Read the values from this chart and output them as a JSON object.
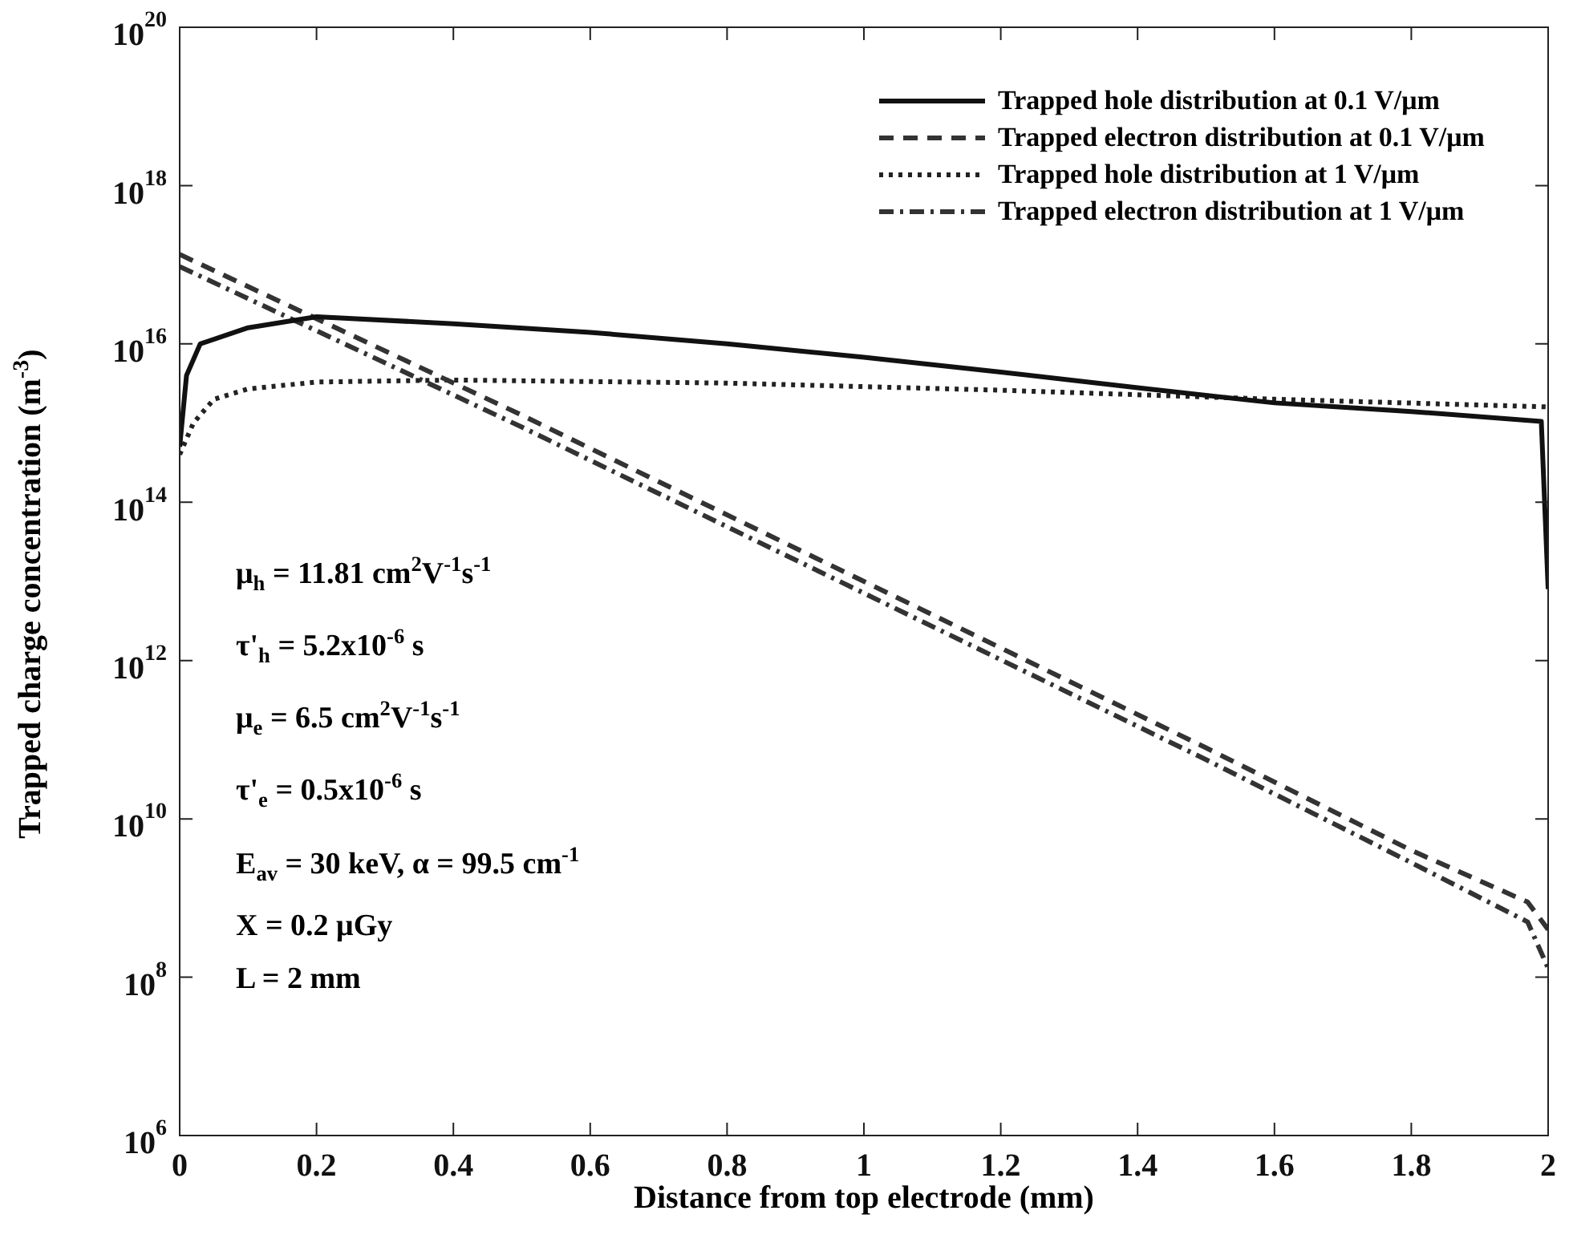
{
  "chart_data": {
    "type": "line",
    "xlabel": "Distance from top electrode (mm)",
    "ylabel": "Trapped charge concentration (m$^{-3}$)",
    "log": "y",
    "grid": false,
    "legend": "top right",
    "marker": "none",
    "xlim": [
      0,
      2
    ],
    "xticks": [
      0,
      0.2,
      0.4,
      0.6,
      0.8,
      1,
      1.2,
      1.4,
      1.6,
      1.8,
      2
    ],
    "ylim": [
      1000000.0,
      1e+20
    ],
    "yticks": [
      {
        "value": 1000000.0,
        "label": "10$^{6}$"
      },
      {
        "value": 100000000.0,
        "label": "10$^{8}$"
      },
      {
        "value": 10000000000.0,
        "label": "10$^{10}$"
      },
      {
        "value": 1000000000000.0,
        "label": "10$^{12}$"
      },
      {
        "value": 100000000000000.0,
        "label": "10$^{14}$"
      },
      {
        "value": 1e+16,
        "label": "10$^{16}$"
      },
      {
        "value": 1e+18,
        "label": "10$^{18}$"
      },
      {
        "value": 1e+20,
        "label": "10$^{20}$"
      }
    ],
    "series": [
      {
        "name": "Trapped hole distribution at 0.1 V/μm",
        "color": "#111111",
        "line_style": "solid",
        "x": [
          0,
          0.01,
          0.03,
          0.1,
          0.2,
          0.4,
          0.6,
          0.8,
          1.0,
          1.2,
          1.4,
          1.6,
          1.8,
          1.99,
          2.0
        ],
        "values": [
          500000000000000.0,
          4000000000000000.0,
          1e+16,
          1.6e+16,
          2.2e+16,
          1.8e+16,
          1.4e+16,
          1e+16,
          6800000000000000.0,
          4400000000000000.0,
          2800000000000000.0,
          1800000000000000.0,
          1400000000000000.0,
          1050000000000000.0,
          8000000000000.0
        ]
      },
      {
        "name": "Trapped electron distribution at 0.1 V/μm",
        "color": "#333333",
        "line_style": "dashed",
        "x": [
          0,
          0.5,
          1,
          1.5,
          1.8,
          1.97,
          2.0
        ],
        "values": [
          1.35e+17,
          1260000000000000.0,
          10000000000000.0,
          79000000000.0,
          4000000000.0,
          890000000.0,
          400000000.0
        ]
      },
      {
        "name": "Trapped hole distribution at 1 V/μm",
        "color": "#222222",
        "line_style": "dotted",
        "x": [
          0,
          0.02,
          0.05,
          0.1,
          0.2,
          0.4,
          0.8,
          1.2,
          1.6,
          2.0
        ],
        "values": [
          400000000000000.0,
          1000000000000000.0,
          2000000000000000.0,
          2700000000000000.0,
          3300000000000000.0,
          3500000000000000.0,
          3200000000000000.0,
          2600000000000000.0,
          2000000000000000.0,
          1600000000000000.0
        ]
      },
      {
        "name": "Trapped electron distribution at 1 V/μm",
        "color": "#333333",
        "line_style": "dashdot",
        "x": [
          0,
          0.5,
          1,
          1.5,
          1.8,
          1.97,
          2.0
        ],
        "values": [
          9.5e+16,
          890000000000000.0,
          7100000000000.0,
          56000000000.0,
          2800000000.0,
          500000000.0,
          130000000.0
        ]
      }
    ],
    "annotations": [
      "μ$_{h}$ = 11.81 cm$^{2}$V$^{-1}$s$^{-1}$",
      "τ'$_{h}$ = 5.2x10$^{-6}$ s",
      "μ$_{e}$ = 6.5 cm$^{2}$V$^{-1}$s$^{-1}$",
      "τ'$_{e}$ = 0.5x10$^{-6}$ s",
      "E$_{av}$ = 30 keV, α = 99.5 cm$^{-1}$",
      "X = 0.2 μGy",
      "L = 2 mm"
    ]
  }
}
